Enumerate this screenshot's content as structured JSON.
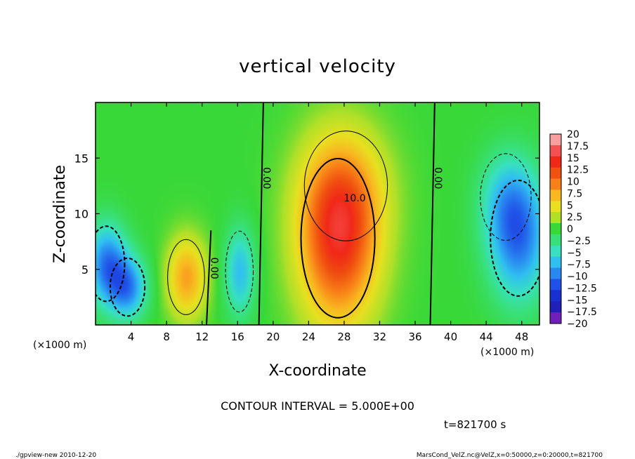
{
  "chart_data": {
    "type": "heatmap",
    "title": "vertical velocity",
    "xlabel": "X-coordinate",
    "ylabel": "Z-coordinate",
    "x_unit": "(×1000 m)",
    "x_unit_right": "(×1000 m)",
    "xlim": [
      0,
      50
    ],
    "ylim": [
      0,
      20
    ],
    "xticks": [
      4,
      8,
      12,
      16,
      20,
      24,
      28,
      32,
      36,
      40,
      44,
      48
    ],
    "xticklabels": [
      "4",
      "8",
      "12",
      "16",
      "20",
      "24",
      "28",
      "32",
      "36",
      "40",
      "44",
      "48"
    ],
    "yticks": [
      5,
      10,
      15
    ],
    "yticklabels": [
      "5",
      "10",
      "15"
    ],
    "colorbar": {
      "levels": [
        20,
        17.5,
        15,
        12.5,
        10,
        7.5,
        5,
        2.5,
        0,
        -2.5,
        -5,
        -7.5,
        -10,
        -12.5,
        -15,
        -17.5,
        -20
      ],
      "labels": [
        "20",
        "17.5",
        "15",
        "12.5",
        "10",
        "7.5",
        "5",
        "2.5",
        "0",
        "−2.5",
        "−5",
        "−7.5",
        "−10",
        "−12.5",
        "−15",
        "−17.5",
        "−20"
      ],
      "colors": [
        "#f8a0a0",
        "#f45050",
        "#f02818",
        "#f05010",
        "#f88018",
        "#f8b820",
        "#e8e020",
        "#b0e028",
        "#38d838",
        "#38e078",
        "#38e0c0",
        "#30c0f0",
        "#2888f0",
        "#2050e8",
        "#1830d0",
        "#2020b8",
        "#7020b8"
      ]
    },
    "features": [
      {
        "x": 1.2,
        "z": 5.5,
        "sx": 1.6,
        "sz": 2.6,
        "value": -10.5
      },
      {
        "x": 3.6,
        "z": 3.4,
        "sx": 1.5,
        "sz": 2.0,
        "value": -9.5
      },
      {
        "x": 10.2,
        "z": 4.3,
        "sx": 1.6,
        "sz": 2.6,
        "value": 8.5
      },
      {
        "x": 16.2,
        "z": 4.8,
        "sx": 1.2,
        "sz": 2.8,
        "value": -7.5
      },
      {
        "x": 27.3,
        "z": 7.8,
        "sx": 3.2,
        "sz": 5.5,
        "value": 14.5
      },
      {
        "x": 28.2,
        "z": 12.5,
        "sx": 3.6,
        "sz": 3.8,
        "value": 3.5
      },
      {
        "x": 47.6,
        "z": 7.8,
        "sx": 2.4,
        "sz": 4.0,
        "value": -10.5
      },
      {
        "x": 46.2,
        "z": 11.5,
        "sx": 2.2,
        "sz": 3.0,
        "value": -4.5
      }
    ],
    "contour_labels": [
      {
        "text": "0.00",
        "x": 18.9,
        "z": 13.2
      },
      {
        "text": "0.00",
        "x": 38.2,
        "z": 13.2
      },
      {
        "text": "0.00",
        "x": 13.0,
        "z": 5.1
      },
      {
        "text": "10.0",
        "x": 29.2,
        "z": 11.1
      }
    ],
    "annotations": {
      "contour_interval": "CONTOUR INTERVAL = 5.000E+00",
      "time": "t=821700 s"
    }
  },
  "footer": {
    "left": "./gpview-new   2010-12-20",
    "right": "MarsCond_VelZ.nc@VelZ,x=0:50000,z=0:20000,t=821700"
  }
}
